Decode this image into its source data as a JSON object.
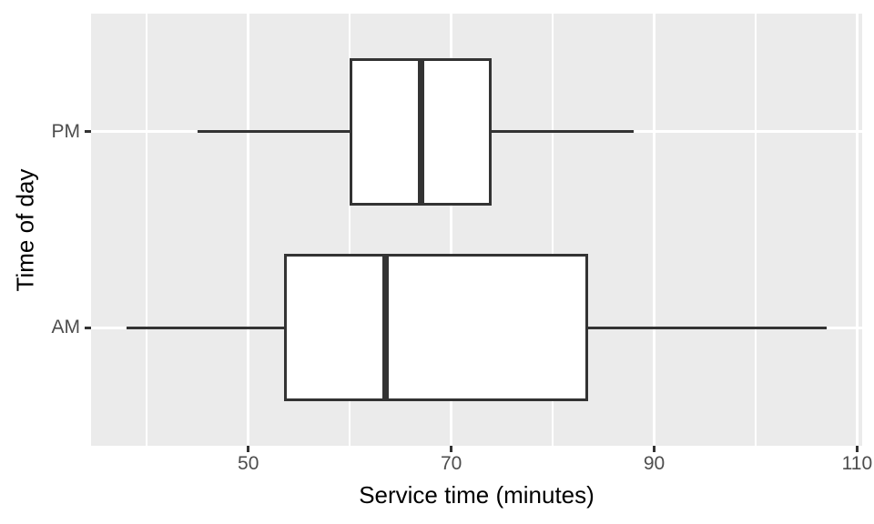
{
  "chart_data": {
    "type": "boxplot",
    "orientation": "horizontal",
    "title": "",
    "xlabel": "Service time (minutes)",
    "ylabel": "Time of day",
    "categories": [
      "AM",
      "PM"
    ],
    "series": [
      {
        "name": "AM",
        "whisker_min": 38,
        "q1": 53.5,
        "median": 63.5,
        "q3": 83.5,
        "whisker_max": 107
      },
      {
        "name": "PM",
        "whisker_min": 45,
        "q1": 60,
        "median": 67,
        "q3": 74,
        "whisker_max": 88
      }
    ],
    "x_ticks": [
      "50",
      "70",
      "90",
      "110"
    ],
    "x_tick_values": [
      50,
      70,
      90,
      110
    ],
    "x_minor_gridline_values": [
      40,
      60,
      80,
      100
    ],
    "xlim": [
      34.5,
      110.5
    ],
    "grid": true,
    "legend_position": "none",
    "style": "ggplot2-theme-grey",
    "colors": {
      "figure_background": "#FFFFFF",
      "panel_background": "#EBEBEB",
      "gridline": "#FFFFFF",
      "box_stroke": "#333333",
      "box_fill": "#FFFFFF",
      "tick_label": "#4D4D4D",
      "axis_title": "#000000"
    }
  }
}
